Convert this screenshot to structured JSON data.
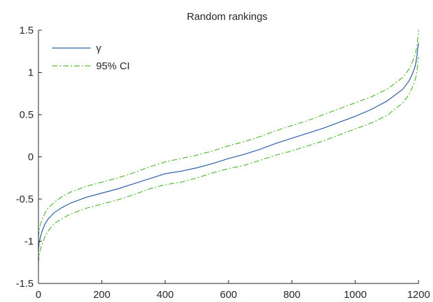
{
  "chart_data": {
    "type": "line",
    "title": "Random rankings",
    "xlabel": "",
    "ylabel": "",
    "xlim": [
      0,
      1200
    ],
    "ylim": [
      -1.5,
      1.5
    ],
    "xticks": [
      0,
      200,
      400,
      600,
      800,
      1000,
      1200
    ],
    "xtick_labels": [
      "0",
      "200",
      "400",
      "600",
      "800",
      "1000",
      "1200"
    ],
    "yticks": [
      -1.5,
      -1,
      -0.5,
      0,
      0.5,
      1,
      1.5
    ],
    "ytick_labels": [
      "-1.5",
      "-1",
      "-0.5",
      "0",
      "0.5",
      "1",
      "1.5"
    ],
    "grid": false,
    "legend_position": "top-left",
    "legend": [
      {
        "label": "γ",
        "color": "#2b5ea8",
        "style": "solid"
      },
      {
        "label": "95% CI",
        "color": "#55bb33",
        "style": "dash-dot"
      }
    ],
    "series": [
      {
        "name": "γ",
        "color": "#2b5ea8",
        "style": "solid",
        "x": [
          0,
          2,
          5,
          10,
          20,
          30,
          50,
          75,
          100,
          150,
          200,
          250,
          300,
          350,
          400,
          450,
          500,
          550,
          600,
          650,
          700,
          750,
          800,
          850,
          900,
          950,
          1000,
          1050,
          1100,
          1150,
          1170,
          1180,
          1190,
          1195,
          1198,
          1200
        ],
        "y": [
          -1.12,
          -1.02,
          -0.97,
          -0.9,
          -0.8,
          -0.74,
          -0.66,
          -0.6,
          -0.55,
          -0.48,
          -0.43,
          -0.38,
          -0.32,
          -0.26,
          -0.2,
          -0.17,
          -0.13,
          -0.08,
          -0.02,
          0.03,
          0.09,
          0.16,
          0.22,
          0.28,
          0.34,
          0.41,
          0.48,
          0.56,
          0.66,
          0.8,
          0.9,
          0.98,
          1.08,
          1.2,
          1.3,
          1.35
        ]
      },
      {
        "name": "95% CI",
        "color": "#55bb33",
        "style": "dash-dot",
        "x": [
          0,
          2,
          5,
          10,
          20,
          30,
          50,
          75,
          100,
          150,
          200,
          250,
          300,
          350,
          400,
          450,
          500,
          550,
          600,
          650,
          700,
          750,
          800,
          850,
          900,
          950,
          1000,
          1050,
          1100,
          1150,
          1170,
          1180,
          1190,
          1195,
          1198,
          1200
        ],
        "y": [
          -0.95,
          -0.88,
          -0.82,
          -0.76,
          -0.67,
          -0.61,
          -0.54,
          -0.47,
          -0.42,
          -0.35,
          -0.3,
          -0.25,
          -0.19,
          -0.12,
          -0.06,
          -0.02,
          0.02,
          0.07,
          0.13,
          0.18,
          0.24,
          0.31,
          0.37,
          0.43,
          0.5,
          0.57,
          0.64,
          0.71,
          0.8,
          0.94,
          1.04,
          1.12,
          1.22,
          1.32,
          1.42,
          1.5
        ]
      },
      {
        "name": "",
        "color": "#55bb33",
        "style": "dash-dot",
        "x": [
          0,
          2,
          5,
          10,
          20,
          30,
          50,
          75,
          100,
          150,
          200,
          250,
          300,
          350,
          400,
          450,
          500,
          550,
          600,
          650,
          700,
          750,
          800,
          850,
          900,
          950,
          1000,
          1050,
          1100,
          1150,
          1170,
          1180,
          1190,
          1195,
          1198,
          1200
        ],
        "y": [
          -1.25,
          -1.17,
          -1.12,
          -1.05,
          -0.95,
          -0.88,
          -0.79,
          -0.73,
          -0.68,
          -0.61,
          -0.56,
          -0.51,
          -0.45,
          -0.38,
          -0.33,
          -0.3,
          -0.25,
          -0.19,
          -0.14,
          -0.1,
          -0.04,
          0.02,
          0.07,
          0.13,
          0.19,
          0.26,
          0.33,
          0.4,
          0.49,
          0.64,
          0.74,
          0.82,
          0.92,
          1.02,
          1.12,
          1.18
        ]
      }
    ]
  }
}
